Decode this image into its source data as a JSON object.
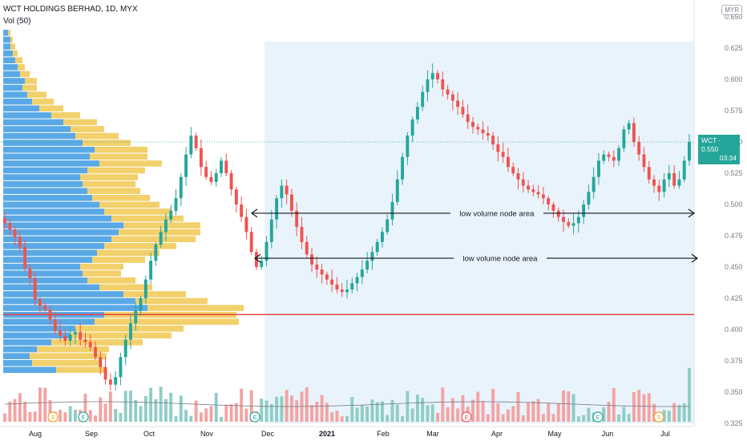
{
  "header": {
    "title": "WCT HOLDINGS BERHAD, 1D, MYX",
    "indicator": "Vol (50)",
    "currency": "MYR"
  },
  "last_price": {
    "label": "WCT · 0.550",
    "countdown": "03:34",
    "value": 0.55
  },
  "colors": {
    "up": "#26a69a",
    "down": "#ef5350",
    "vol_up": "#8fcdc6",
    "vol_down": "#f4a3a3",
    "vp_up": "#5aa9e6",
    "vp_down": "#f2d06b",
    "poc": "#e53935",
    "range_bg": "#e9f3fb"
  },
  "chart_data": {
    "type": "candlestick",
    "price_axis": {
      "min": 0.325,
      "max": 0.65,
      "ticks": [
        "0.325",
        "0.350",
        "0.375",
        "0.400",
        "0.425",
        "0.450",
        "0.475",
        "0.500",
        "0.525",
        "0.550",
        "0.575",
        "0.600",
        "0.625",
        "0.650"
      ]
    },
    "time_axis": {
      "labels": [
        "Aug",
        "Sep",
        "Oct",
        "Nov",
        "Dec",
        "2021",
        "Feb",
        "Mar",
        "Apr",
        "May",
        "Jun",
        "Jul"
      ]
    },
    "annotations": [
      {
        "text": "low volume node area",
        "price": 0.493
      },
      {
        "text": "low volume node area",
        "price": 0.457
      }
    ],
    "poc_price": 0.412,
    "volume_profile": {
      "price_low": 0.365,
      "price_high": 0.64,
      "rows": 50,
      "up": [
        22,
        12,
        11,
        14,
        20,
        28,
        30,
        38,
        42,
        60,
        55,
        50,
        40,
        35,
        33,
        32,
        37,
        39,
        42,
        45,
        48,
        50,
        45,
        42,
        40,
        37,
        35,
        33,
        32,
        35,
        40,
        36,
        38,
        33,
        30,
        28,
        25,
        20,
        15,
        12,
        10,
        8,
        9,
        7,
        6,
        5,
        4,
        3,
        3,
        2
      ],
      "down": [
        20,
        28,
        32,
        30,
        38,
        42,
        45,
        60,
        55,
        40,
        30,
        26,
        22,
        20,
        16,
        18,
        22,
        26,
        30,
        35,
        34,
        32,
        30,
        28,
        25,
        24,
        22,
        22,
        24,
        24,
        26,
        24,
        22,
        20,
        18,
        14,
        14,
        12,
        10,
        9,
        8,
        6,
        5,
        4,
        3,
        3,
        2,
        2,
        1,
        1
      ]
    },
    "ohlc_path": [
      0.485,
      0.48,
      0.474,
      0.466,
      0.449,
      0.441,
      0.424,
      0.419,
      0.416,
      0.408,
      0.399,
      0.395,
      0.391,
      0.396,
      0.398,
      0.392,
      0.39,
      0.386,
      0.378,
      0.37,
      0.36,
      0.356,
      0.362,
      0.378,
      0.392,
      0.405,
      0.415,
      0.425,
      0.44,
      0.455,
      0.468,
      0.478,
      0.488,
      0.495,
      0.505,
      0.522,
      0.54,
      0.555,
      0.545,
      0.53,
      0.522,
      0.518,
      0.525,
      0.535,
      0.525,
      0.512,
      0.5,
      0.49,
      0.478,
      0.462,
      0.45,
      0.455,
      0.47,
      0.488,
      0.505,
      0.515,
      0.508,
      0.495,
      0.482,
      0.47,
      0.46,
      0.452,
      0.448,
      0.444,
      0.44,
      0.436,
      0.432,
      0.43,
      0.432,
      0.437,
      0.442,
      0.448,
      0.455,
      0.462,
      0.47,
      0.478,
      0.488,
      0.502,
      0.52,
      0.538,
      0.555,
      0.568,
      0.578,
      0.59,
      0.6,
      0.605,
      0.6,
      0.592,
      0.588,
      0.583,
      0.578,
      0.572,
      0.566,
      0.562,
      0.56,
      0.557,
      0.555,
      0.548,
      0.542,
      0.538,
      0.53,
      0.525,
      0.52,
      0.515,
      0.512,
      0.51,
      0.508,
      0.505,
      0.5,
      0.495,
      0.49,
      0.486,
      0.483,
      0.485,
      0.49,
      0.5,
      0.51,
      0.522,
      0.535,
      0.54,
      0.538,
      0.535,
      0.545,
      0.56,
      0.565,
      0.55,
      0.54,
      0.53,
      0.52,
      0.515,
      0.51,
      0.52,
      0.525,
      0.515,
      0.52,
      0.535,
      0.55
    ]
  }
}
